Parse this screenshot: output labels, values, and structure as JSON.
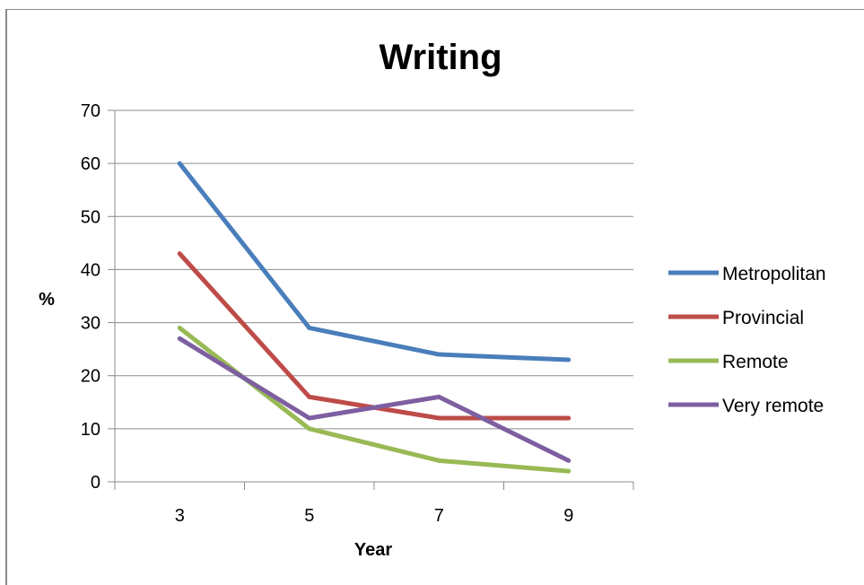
{
  "chart_data": {
    "type": "line",
    "title": "Writing",
    "xlabel": "Year",
    "ylabel": "%",
    "x": [
      3,
      5,
      7,
      9
    ],
    "categories": [
      "3",
      "5",
      "7",
      "9"
    ],
    "ylim": [
      0,
      70
    ],
    "yticks": [
      0,
      10,
      20,
      30,
      40,
      50,
      60,
      70
    ],
    "grid": true,
    "legend": "right",
    "series": [
      {
        "name": "Metropolitan",
        "values": [
          60,
          29,
          24,
          23
        ],
        "color": "#4a7ebb"
      },
      {
        "name": "Provincial",
        "values": [
          43,
          16,
          12,
          12
        ],
        "color": "#be4b48"
      },
      {
        "name": "Remote",
        "values": [
          29,
          10,
          4,
          2
        ],
        "color": "#98b954"
      },
      {
        "name": "Very remote",
        "values": [
          27,
          12,
          16,
          4
        ],
        "color": "#7d5fa0"
      }
    ]
  }
}
